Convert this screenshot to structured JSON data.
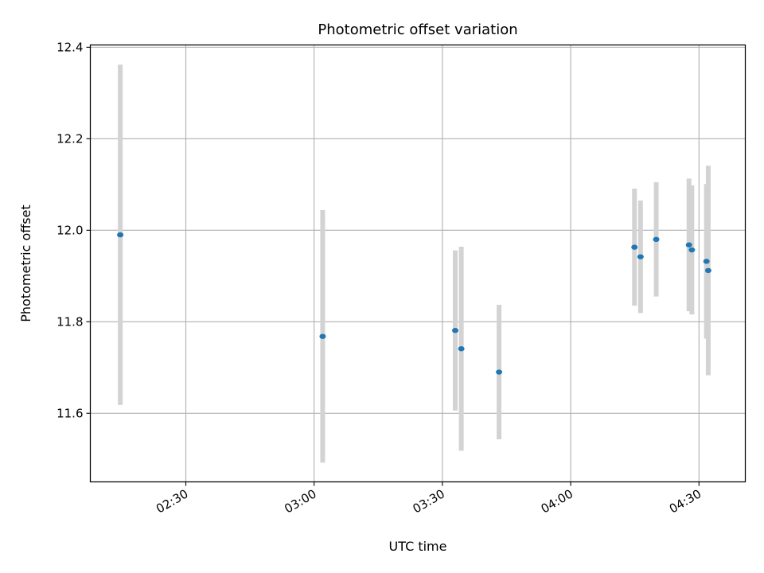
{
  "chart_data": {
    "type": "scatter",
    "title": "Photometric offset variation",
    "xlabel": "UTC time",
    "ylabel": "Photometric offset",
    "x_axis_type": "time",
    "xlim": [
      "02:07:40",
      "04:40:50"
    ],
    "ylim": [
      11.45,
      12.405
    ],
    "x_ticks": [
      "02:30",
      "03:00",
      "03:30",
      "04:00",
      "04:30"
    ],
    "y_ticks": [
      "11.6",
      "11.8",
      "12.0",
      "12.2",
      "12.4"
    ],
    "grid": true,
    "colors": {
      "marker": "#1f77b4",
      "errorbar": "#d3d3d3",
      "grid": "#b0b0b0",
      "axes": "#000000"
    },
    "series": [
      {
        "points": [
          {
            "t": "02:14:40",
            "y": 11.99,
            "err": 0.372
          },
          {
            "t": "03:02:00",
            "y": 11.768,
            "err": 0.276
          },
          {
            "t": "03:33:00",
            "y": 11.781,
            "err": 0.175
          },
          {
            "t": "03:34:25",
            "y": 11.741,
            "err": 0.223
          },
          {
            "t": "03:43:15",
            "y": 11.69,
            "err": 0.147
          },
          {
            "t": "04:14:55",
            "y": 11.963,
            "err": 0.128
          },
          {
            "t": "04:16:20",
            "y": 11.942,
            "err": 0.123
          },
          {
            "t": "04:20:00",
            "y": 11.98,
            "err": 0.125
          },
          {
            "t": "04:27:40",
            "y": 11.968,
            "err": 0.145
          },
          {
            "t": "04:28:20",
            "y": 11.957,
            "err": 0.141
          },
          {
            "t": "04:31:45",
            "y": 11.932,
            "err": 0.169
          },
          {
            "t": "04:32:10",
            "y": 11.912,
            "err": 0.229
          }
        ]
      }
    ]
  }
}
